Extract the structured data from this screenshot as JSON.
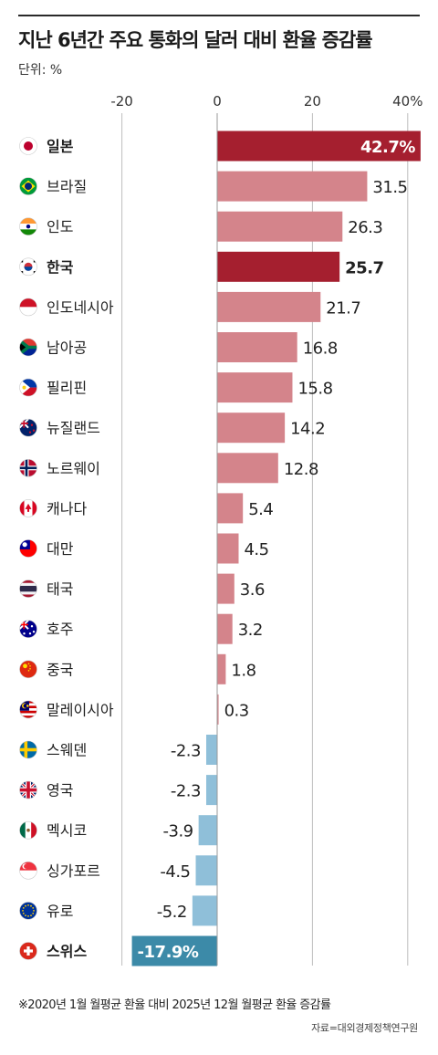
{
  "title": "지난 6년간 주요 통화의 달러 대비 환율 증감률",
  "unit_label": "단위: %",
  "footnote": "※2020년 1월 월평균 환율 대비 2025년 12월 월평균 환율 증감률",
  "source": "자료=대외경제정책연구원",
  "colors": {
    "highlight": "#a51f2f",
    "positive": "#d4848b",
    "negative": "#8fbfd9",
    "negative_highlight": "#3c8aa8",
    "grid": "#bdbdbd"
  },
  "chart_data": {
    "type": "bar",
    "orientation": "horizontal",
    "xlim": [
      -20,
      42.7
    ],
    "x_ticks": [
      -20,
      0,
      20,
      40
    ],
    "x_tick_labels": [
      "-20",
      "0",
      "20",
      "40%"
    ],
    "grid": true,
    "categories": [
      "일본",
      "브라질",
      "인도",
      "한국",
      "인도네시아",
      "남아공",
      "필리핀",
      "뉴질랜드",
      "노르웨이",
      "캐나다",
      "대만",
      "태국",
      "호주",
      "중국",
      "말레이시아",
      "스웨덴",
      "영국",
      "멕시코",
      "싱가포르",
      "유로",
      "스위스"
    ],
    "values": [
      42.7,
      31.5,
      26.3,
      25.7,
      21.7,
      16.8,
      15.8,
      14.2,
      12.8,
      5.4,
      4.5,
      3.6,
      3.2,
      1.8,
      0.3,
      -2.3,
      -2.3,
      -3.9,
      -4.5,
      -5.2,
      -17.9
    ],
    "value_labels": [
      "42.7%",
      "31.5",
      "26.3",
      "25.7",
      "21.7",
      "16.8",
      "15.8",
      "14.2",
      "12.8",
      "5.4",
      "4.5",
      "3.6",
      "3.2",
      "1.8",
      "0.3",
      "-2.3",
      "-2.3",
      "-3.9",
      "-4.5",
      "-5.2",
      "-17.9%"
    ],
    "highlighted": [
      "일본",
      "한국",
      "스위스"
    ],
    "flag_icons": [
      "japan-flag",
      "brazil-flag",
      "india-flag",
      "korea-flag",
      "indonesia-flag",
      "south-africa-flag",
      "philippines-flag",
      "new-zealand-flag",
      "norway-flag",
      "canada-flag",
      "taiwan-flag",
      "thailand-flag",
      "australia-flag",
      "china-flag",
      "malaysia-flag",
      "sweden-flag",
      "uk-flag",
      "mexico-flag",
      "singapore-flag",
      "eu-flag",
      "switzerland-flag"
    ]
  }
}
